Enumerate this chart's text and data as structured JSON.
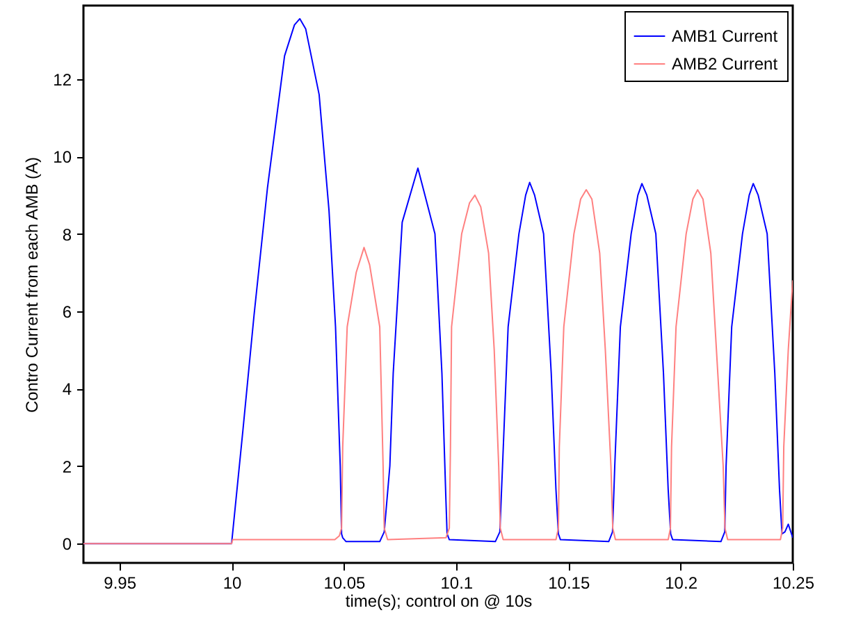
{
  "chart_data": {
    "type": "line",
    "xlabel": "time(s); control on @ 10s",
    "ylabel": "Contro Current from each AMB (A)",
    "xlim": [
      9.934,
      10.25
    ],
    "ylim": [
      -0.5,
      13.9
    ],
    "xticks": [
      9.95,
      10,
      10.05,
      10.1,
      10.15,
      10.2,
      10.25
    ],
    "yticks": [
      0,
      2,
      4,
      6,
      8,
      10,
      12
    ],
    "legend": "top right",
    "line_style": "solid",
    "series": [
      {
        "name": "AMB1 Current",
        "color": "#0000ff",
        "x": [
          9.934,
          10.0,
          10.005,
          10.01,
          10.016,
          10.0236,
          10.028,
          10.0304,
          10.033,
          10.039,
          10.0434,
          10.0463,
          10.0484,
          10.049,
          10.0495,
          10.051,
          10.066,
          10.068,
          10.0705,
          10.072,
          10.076,
          10.083,
          10.0906,
          10.0937,
          10.0955,
          10.096,
          10.097,
          10.1175,
          10.1195,
          10.1207,
          10.1232,
          10.128,
          10.131,
          10.1328,
          10.135,
          10.139,
          10.1424,
          10.1445,
          10.1456,
          10.1465,
          10.168,
          10.1697,
          10.1707,
          10.1732,
          10.178,
          10.181,
          10.1828,
          10.185,
          10.189,
          10.1924,
          10.1945,
          10.1956,
          10.1965,
          10.218,
          10.2197,
          10.2203,
          10.2228,
          10.2276,
          10.2306,
          10.2324,
          10.2346,
          10.2386,
          10.242,
          10.2441,
          10.2452,
          10.2465,
          10.248,
          10.25
        ],
        "values": [
          0,
          0,
          2.9,
          5.9,
          9.2,
          12.6,
          13.4,
          13.56,
          13.3,
          11.6,
          8.6,
          5.6,
          2.0,
          0.25,
          0.15,
          0.05,
          0.05,
          0.3,
          2.0,
          4.4,
          8.3,
          9.7,
          8.0,
          4.4,
          1.1,
          0.25,
          0.1,
          0.05,
          0.3,
          2.0,
          5.6,
          8.0,
          9.0,
          9.33,
          9.0,
          8.0,
          4.4,
          1.4,
          0.25,
          0.1,
          0.05,
          0.3,
          2.0,
          5.6,
          8.0,
          9.0,
          9.3,
          9.0,
          8.0,
          4.4,
          1.4,
          0.25,
          0.1,
          0.05,
          0.3,
          2.0,
          5.6,
          8.0,
          9.0,
          9.3,
          9.0,
          8.0,
          4.4,
          1.4,
          0.25,
          0.3,
          0.5,
          0.15
        ]
      },
      {
        "name": "AMB2 Current",
        "color": "#ff8080",
        "x": [
          9.934,
          10.0,
          10.0005,
          10.046,
          10.048,
          10.049,
          10.0495,
          10.0515,
          10.0555,
          10.059,
          10.0615,
          10.066,
          10.0675,
          10.068,
          10.0695,
          10.0955,
          10.097,
          10.0975,
          10.098,
          10.1025,
          10.106,
          10.1084,
          10.111,
          10.1145,
          10.117,
          10.119,
          10.1197,
          10.121,
          10.1445,
          10.1456,
          10.146,
          10.148,
          10.1525,
          10.1555,
          10.158,
          10.1605,
          10.164,
          10.1665,
          10.169,
          10.1698,
          10.171,
          10.1945,
          10.1955,
          10.196,
          10.198,
          10.2025,
          10.2055,
          10.2076,
          10.21,
          10.2135,
          10.216,
          10.219,
          10.2198,
          10.221,
          10.2445,
          10.2455,
          10.246,
          10.248,
          10.25
        ],
        "values": [
          0,
          0,
          0.1,
          0.1,
          0.2,
          0.4,
          2.5,
          5.6,
          7.0,
          7.65,
          7.2,
          5.6,
          2.0,
          0.4,
          0.1,
          0.15,
          0.4,
          2.5,
          5.6,
          8.0,
          8.8,
          9.0,
          8.7,
          7.5,
          5.0,
          2.0,
          0.4,
          0.1,
          0.1,
          0.4,
          2.5,
          5.6,
          8.0,
          8.9,
          9.14,
          8.9,
          7.5,
          5.0,
          2.0,
          0.4,
          0.1,
          0.1,
          0.4,
          2.5,
          5.6,
          8.0,
          8.9,
          9.14,
          8.9,
          7.5,
          5.0,
          2.0,
          0.4,
          0.1,
          0.1,
          0.4,
          2.5,
          5.0,
          6.8
        ]
      }
    ]
  }
}
